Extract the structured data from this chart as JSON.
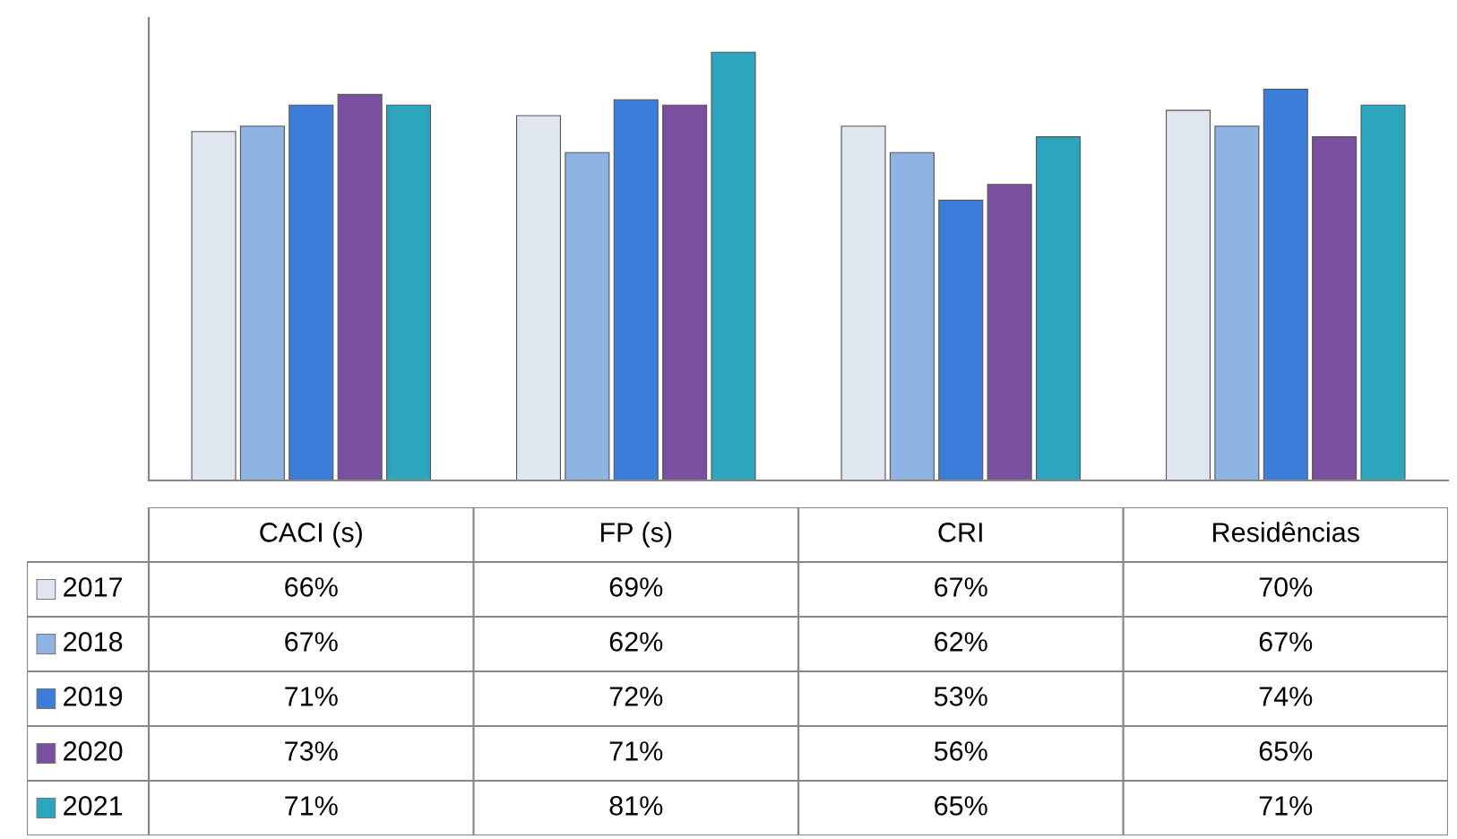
{
  "chart_data": {
    "type": "bar",
    "categories": [
      "CACI (s)",
      "FP (s)",
      "CRI",
      "Residências"
    ],
    "series": [
      {
        "name": "2017",
        "color": "#dfe6ef",
        "values": [
          66,
          69,
          67,
          70
        ],
        "value_labels": [
          "66%",
          "69%",
          "67%",
          "70%"
        ]
      },
      {
        "name": "2018",
        "color": "#8fb4e3",
        "values": [
          67,
          62,
          62,
          67
        ],
        "value_labels": [
          "67%",
          "62%",
          "62%",
          "67%"
        ]
      },
      {
        "name": "2019",
        "color": "#3b7dd8",
        "values": [
          71,
          72,
          53,
          74
        ],
        "value_labels": [
          "71%",
          "72%",
          "53%",
          "74%"
        ]
      },
      {
        "name": "2020",
        "color": "#7a4f9f",
        "values": [
          73,
          71,
          56,
          65
        ],
        "value_labels": [
          "73%",
          "71%",
          "56%",
          "65%"
        ]
      },
      {
        "name": "2021",
        "color": "#2ba6bd",
        "values": [
          71,
          81,
          65,
          71
        ],
        "value_labels": [
          "71%",
          "81%",
          "65%",
          "71%"
        ]
      }
    ],
    "legend": "bottom left"
  }
}
